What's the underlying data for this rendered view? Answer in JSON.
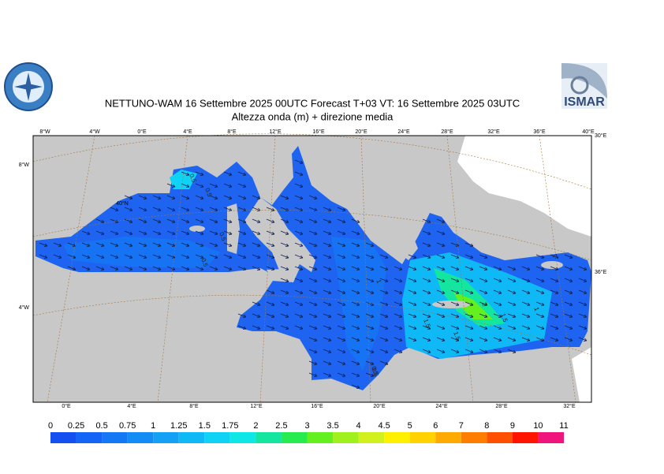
{
  "header": {
    "title": "NETTUNO-WAM  16 Settembre 2025 00UTC Forecast T+03 VT: 16 Settembre 2025 03UTC",
    "subtitle": "Altezza onda (m) + direzione media",
    "logo_right": "ISMAR"
  },
  "graticule": {
    "top": [
      "8°W",
      "4°W",
      "0°E",
      "4°E",
      "8°E",
      "12°E",
      "16°E",
      "20°E",
      "24°E",
      "28°E",
      "32°E",
      "36°E",
      "40°E"
    ],
    "bottom": [
      "0°E",
      "4°E",
      "8°E",
      "12°E",
      "16°E",
      "20°E",
      "24°E",
      "28°E",
      "32°E"
    ],
    "left": [
      "8°W",
      "4°W"
    ],
    "right": [
      "30°E",
      "36°E"
    ],
    "inner": [
      "40°N"
    ]
  },
  "contour_labels": [
    "0.5",
    "0.5",
    "0.5",
    "0.5",
    "0.5",
    "1",
    "1",
    "1.5",
    "1.5",
    "2",
    "1.5",
    "1",
    "0.5"
  ],
  "colorbar": {
    "levels": [
      0,
      0.25,
      0.5,
      0.75,
      1,
      1.25,
      1.5,
      1.75,
      2,
      2.5,
      3,
      3.5,
      4,
      4.5,
      5,
      6,
      7,
      8,
      9,
      10,
      11
    ],
    "colors": [
      "#1450f0",
      "#1464f5",
      "#1478f5",
      "#148cf5",
      "#14a0f5",
      "#0fb9f5",
      "#0fd2f5",
      "#0fe6e6",
      "#14e6a0",
      "#28eb50",
      "#64f01e",
      "#a0f01e",
      "#d2f01e",
      "#fff000",
      "#ffd200",
      "#ffaa00",
      "#ff7d00",
      "#ff5000",
      "#ff1400",
      "#f0147d",
      "#f01ed2"
    ]
  }
}
